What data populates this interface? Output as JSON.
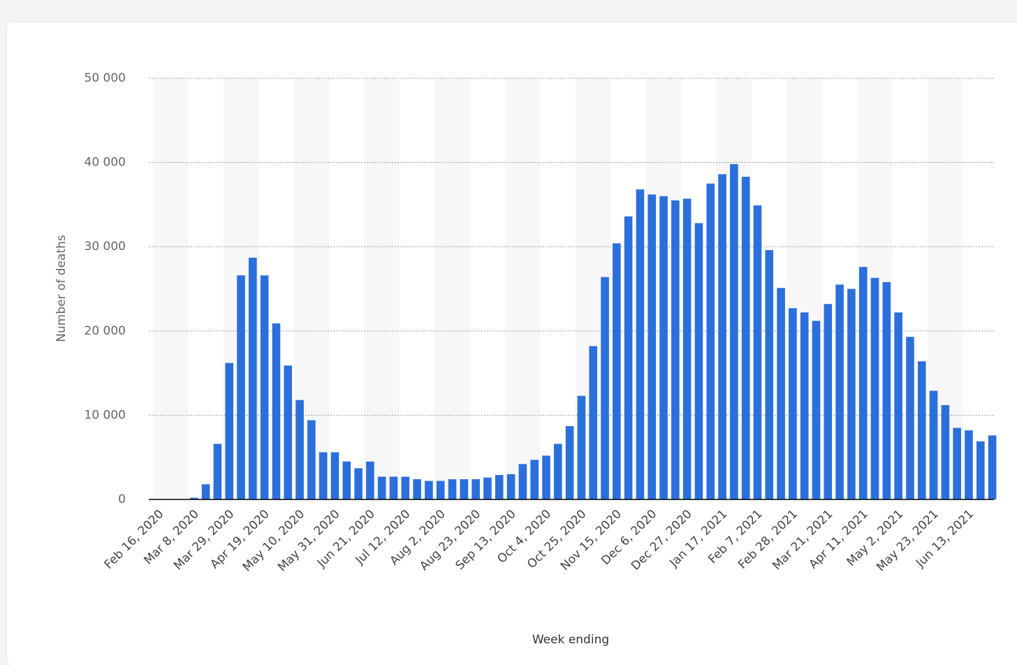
{
  "chart_data": {
    "type": "bar",
    "categories": [
      "Feb 16, 2020",
      null,
      null,
      "Mar 8, 2020",
      null,
      null,
      "Mar 29, 2020",
      null,
      null,
      "Apr 19, 2020",
      null,
      null,
      "May 10, 2020",
      null,
      null,
      "May 31, 2020",
      null,
      null,
      "Jun 21, 2020",
      null,
      null,
      "Jul 12, 2020",
      null,
      null,
      "Aug 2, 2020",
      null,
      null,
      "Aug 23, 2020",
      null,
      null,
      "Sep 13, 2020",
      null,
      null,
      "Oct 4, 2020",
      null,
      null,
      "Oct 25, 2020",
      null,
      null,
      "Nov 15, 2020",
      null,
      null,
      "Dec 6, 2020",
      null,
      null,
      "Dec 27, 2020",
      null,
      null,
      "Jan 17, 2021",
      null,
      null,
      "Feb 7, 2021",
      null,
      null,
      "Feb 28, 2021",
      null,
      null,
      "Mar 21, 2021",
      null,
      null,
      "Apr 11, 2021",
      null,
      null,
      "May 2, 2021",
      null,
      null,
      "May 23, 2021",
      null,
      null,
      "Jun 13, 2021",
      null,
      null
    ],
    "values": [
      0,
      0,
      0,
      200,
      1800,
      6600,
      16200,
      26600,
      28700,
      26600,
      20900,
      15900,
      11800,
      9400,
      5600,
      5600,
      4500,
      3700,
      4500,
      2700,
      2700,
      2700,
      2400,
      2200,
      2200,
      2400,
      2400,
      2400,
      2600,
      2900,
      3000,
      4200,
      4700,
      5200,
      6600,
      8700,
      12300,
      18200,
      26400,
      30400,
      33600,
      36800,
      36200,
      36000,
      35500,
      35700,
      32800,
      37500,
      38600,
      39800,
      38300,
      34900,
      29600,
      25100,
      22700,
      22200,
      21200,
      23200,
      25500,
      25000,
      27600,
      26300,
      25800,
      22200,
      19300,
      16400,
      12900,
      11200,
      8500,
      8200,
      6900,
      7600
    ],
    "color": "#2b6fdc",
    "ylim": [
      0,
      50000
    ],
    "yticks": [
      0,
      {
        "value": 10000,
        "label": "10 000"
      },
      {
        "value": 20000,
        "label": "20 000"
      },
      {
        "value": 30000,
        "label": "30 000"
      },
      {
        "value": 40000,
        "label": "40 000"
      },
      {
        "value": 50000,
        "label": "50 000"
      }
    ],
    "grid": true,
    "ylabel": "Number of deaths",
    "xlabel": "Week ending"
  }
}
